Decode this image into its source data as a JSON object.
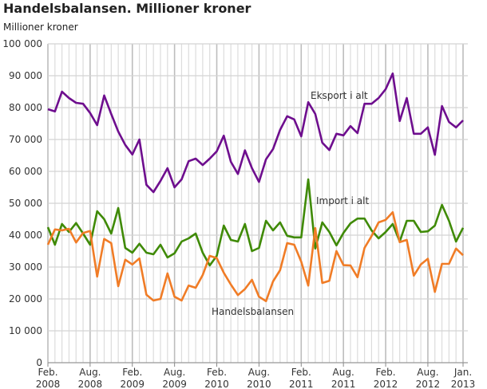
{
  "chart_data": {
    "type": "line",
    "title": "Handelsbalansen. Millioner kroner",
    "ylabel": "Millioner kroner",
    "ylim": [
      0,
      100000
    ],
    "yticks": [
      0,
      10000,
      20000,
      30000,
      40000,
      50000,
      60000,
      70000,
      80000,
      90000,
      100000
    ],
    "ytick_labels": [
      "0",
      "10 000",
      "20 000",
      "30 000",
      "40 000",
      "50 000",
      "60 000",
      "70 000",
      "80 000",
      "90 000",
      "100 000"
    ],
    "grid": true,
    "x_start": "2008-02",
    "x_end": "2013-01",
    "xtick_labels": [
      {
        "month": "Feb.",
        "year": "2008",
        "index": 0
      },
      {
        "month": "Aug.",
        "year": "2008",
        "index": 6
      },
      {
        "month": "Feb.",
        "year": "2009",
        "index": 12
      },
      {
        "month": "Aug.",
        "year": "2009",
        "index": 18
      },
      {
        "month": "Feb.",
        "year": "2010",
        "index": 24
      },
      {
        "month": "Aug.",
        "year": "2010",
        "index": 30
      },
      {
        "month": "Feb.",
        "year": "2011",
        "index": 36
      },
      {
        "month": "Aug.",
        "year": "2011",
        "index": 42
      },
      {
        "month": "Feb.",
        "year": "2012",
        "index": 48
      },
      {
        "month": "Aug.",
        "year": "2012",
        "index": 54
      },
      {
        "month": "Jan.",
        "year": "2013",
        "index": 59
      }
    ],
    "series": [
      {
        "name": "Eksport i alt",
        "color": "#6e0e8e",
        "values": [
          79500,
          78800,
          85000,
          83000,
          81500,
          81200,
          78300,
          74500,
          83800,
          78000,
          72500,
          68300,
          65300,
          70000,
          55800,
          53500,
          57000,
          61000,
          55000,
          57500,
          63200,
          64000,
          62000,
          64000,
          66300,
          71200,
          63000,
          59200,
          66600,
          61000,
          56700,
          63800,
          67000,
          73000,
          77300,
          76300,
          71000,
          81700,
          78000,
          69000,
          66700,
          71800,
          71300,
          74200,
          72000,
          81200,
          81200,
          83000,
          85800,
          90700,
          75800,
          83000,
          71800,
          71800,
          73800,
          65200,
          80500,
          75500,
          73800,
          76000
        ]
      },
      {
        "name": "Import i alt",
        "color": "#3f8a06",
        "values": [
          42500,
          37000,
          43500,
          41000,
          43800,
          40500,
          37000,
          47500,
          45000,
          40500,
          48500,
          36000,
          34500,
          37300,
          34500,
          34000,
          37000,
          33000,
          34300,
          38000,
          39000,
          40500,
          34500,
          30500,
          33500,
          43000,
          38500,
          38000,
          43500,
          35000,
          36000,
          44500,
          41500,
          44000,
          39800,
          39300,
          39300,
          57500,
          35800,
          44000,
          41000,
          36800,
          40700,
          43700,
          45200,
          45200,
          41500,
          39000,
          41000,
          43500,
          38000,
          44500,
          44500,
          41000,
          41200,
          43000,
          49500,
          44500,
          38000,
          42300
        ]
      },
      {
        "name": "Handelsbalansen",
        "color": "#f07c26",
        "values": [
          37000,
          41800,
          41500,
          42000,
          37700,
          40700,
          41300,
          27000,
          38800,
          37500,
          24000,
          32300,
          30800,
          32700,
          21300,
          19500,
          20000,
          28000,
          20700,
          19500,
          24200,
          23500,
          27500,
          33500,
          32800,
          28200,
          24500,
          21200,
          23100,
          26000,
          20700,
          19300,
          25500,
          29000,
          37500,
          37000,
          31700,
          24200,
          42200,
          25000,
          25700,
          35000,
          30600,
          30500,
          26800,
          36000,
          39700,
          44000,
          44800,
          47200,
          37800,
          38500,
          27300,
          30800,
          32600,
          22200,
          31000,
          31000,
          35800,
          33700
        ]
      }
    ]
  }
}
